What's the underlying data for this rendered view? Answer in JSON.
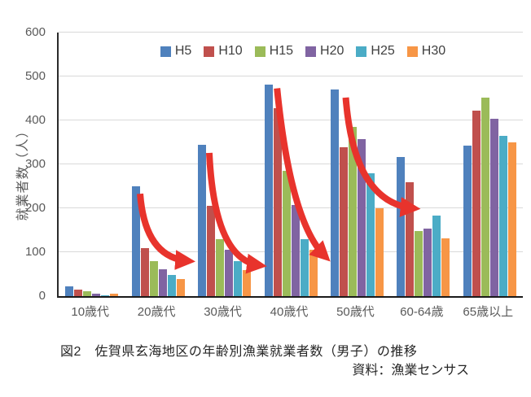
{
  "chart_data": {
    "type": "bar",
    "title": "図2　佐賀県玄海地区の年齢別漁業就業者数（男子）の推移",
    "source": "資料：漁業センサス",
    "ylabel": "就業者数（人）",
    "ylim": [
      0,
      600
    ],
    "yticks": [
      0,
      100,
      200,
      300,
      400,
      500,
      600
    ],
    "grid": true,
    "legend_position": "top-center-inside",
    "categories": [
      "10歳代",
      "20歳代",
      "30歳代",
      "40歳代",
      "50歳代",
      "60-64歳",
      "65歳以上"
    ],
    "series": [
      {
        "name": "H5",
        "color": "#4F81BD",
        "values": [
          22,
          250,
          345,
          482,
          470,
          317,
          342
        ]
      },
      {
        "name": "H10",
        "color": "#C0504D",
        "values": [
          15,
          110,
          205,
          428,
          338,
          260,
          422
        ]
      },
      {
        "name": "H15",
        "color": "#9BBB59",
        "values": [
          11,
          80,
          130,
          285,
          385,
          148,
          452
        ]
      },
      {
        "name": "H20",
        "color": "#8064A2",
        "values": [
          5,
          62,
          105,
          207,
          357,
          153,
          403
        ]
      },
      {
        "name": "H25",
        "color": "#4BACC6",
        "values": [
          2,
          48,
          80,
          130,
          280,
          183,
          365
        ]
      },
      {
        "name": "H30",
        "color": "#F79646",
        "values": [
          5,
          38,
          60,
          105,
          200,
          132,
          350
        ]
      }
    ],
    "annotations": {
      "arrow_color": "#E8332C",
      "arrows": [
        {
          "id": "decline-arrow-20s",
          "from": {
            "x_frac": 0.179,
            "value": 233
          },
          "to": {
            "x_frac": 0.283,
            "value": 80
          },
          "bend_x": 0.1,
          "bend_y": 0.95,
          "width": 8
        },
        {
          "id": "decline-arrow-30s",
          "from": {
            "x_frac": 0.328,
            "value": 326
          },
          "to": {
            "x_frac": 0.437,
            "value": 70
          },
          "bend_x": 0.1,
          "bend_y": 0.95,
          "width": 8
        },
        {
          "id": "decline-arrow-40s",
          "from": {
            "x_frac": 0.474,
            "value": 473
          },
          "to": {
            "x_frac": 0.578,
            "value": 90
          },
          "bend_x": 0.28,
          "bend_y": 0.8,
          "width": 8
        },
        {
          "id": "decline-arrow-50s",
          "from": {
            "x_frac": 0.622,
            "value": 452
          },
          "to": {
            "x_frac": 0.768,
            "value": 200
          },
          "bend_x": 0.12,
          "bend_y": 0.95,
          "width": 8
        }
      ]
    }
  }
}
